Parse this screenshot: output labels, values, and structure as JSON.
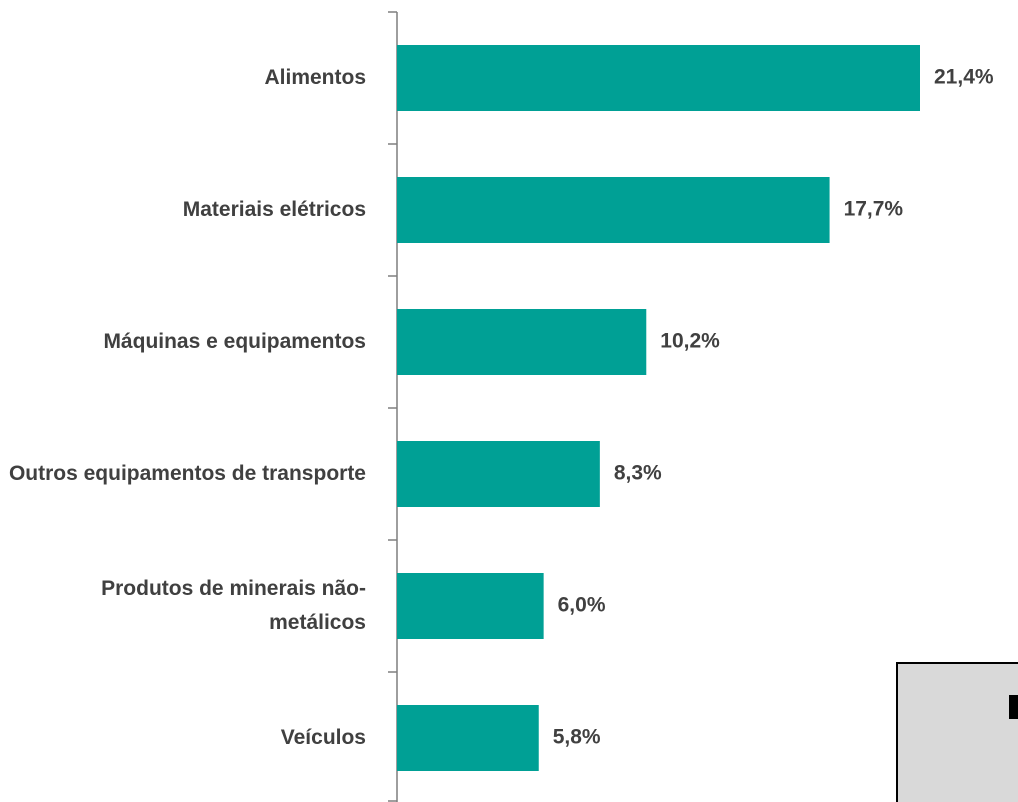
{
  "chart_data": {
    "type": "barh",
    "categories": [
      "Alimentos",
      "Materiais elétricos",
      "Máquinas e equipamentos",
      "Outros equipamentos de transporte",
      "Produtos de minerais não-metálicos",
      "Veículos"
    ],
    "values": [
      21.4,
      17.7,
      10.2,
      8.3,
      6.0,
      5.8
    ],
    "value_labels": [
      "21,4%",
      "17,7%",
      "10,2%",
      "8,3%",
      "6,0%",
      "5,8%"
    ],
    "color": "#00a095"
  }
}
